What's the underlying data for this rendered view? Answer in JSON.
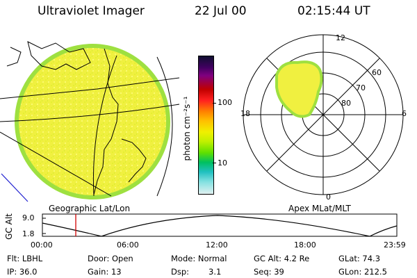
{
  "header": {
    "title": "Ultraviolet Imager",
    "date": "22 Jul 00",
    "time": "02:15:44 UT"
  },
  "colorbar": {
    "unit_label": "photon cm⁻²s⁻¹",
    "ticks": [
      "100",
      "10"
    ],
    "colors": [
      "#101030",
      "#400060",
      "#800080",
      "#c00000",
      "#ff2020",
      "#ff8000",
      "#ffc000",
      "#f0f000",
      "#c0f000",
      "#60e000",
      "#00c060",
      "#20c0c0",
      "#80e0e0",
      "#e0f0f0"
    ]
  },
  "panels": {
    "left_caption": "Geographic Lat/Lon",
    "right_caption": "Apex MLat/MLT",
    "polar_labels": {
      "mlt_top": "12",
      "mlt_left": "18",
      "mlt_right": "6",
      "mlt_bottom": "0",
      "lat_60": "60",
      "lat_70": "70",
      "lat_80": "80"
    }
  },
  "timeline": {
    "ylabel": "GC Alt",
    "ytick_high": "9.0",
    "ytick_low": "1.8",
    "xticks": [
      "00:00",
      "06:00",
      "12:00",
      "18:00",
      "23:59"
    ],
    "marker_time_hours": 2.26
  },
  "info": {
    "flt": "Flt: LBHL",
    "ip": "IP: 36.0",
    "door": "Door: Open",
    "gain": "Gain: 13",
    "mode": "Mode: Normal",
    "dsp_label": "Dsp:",
    "dsp_value": "3.1",
    "gcalt": "GC Alt: 4.2 Re",
    "seq": "Seq: 39",
    "glat": "GLat: 74.3",
    "glon": "GLon: 212.5"
  }
}
